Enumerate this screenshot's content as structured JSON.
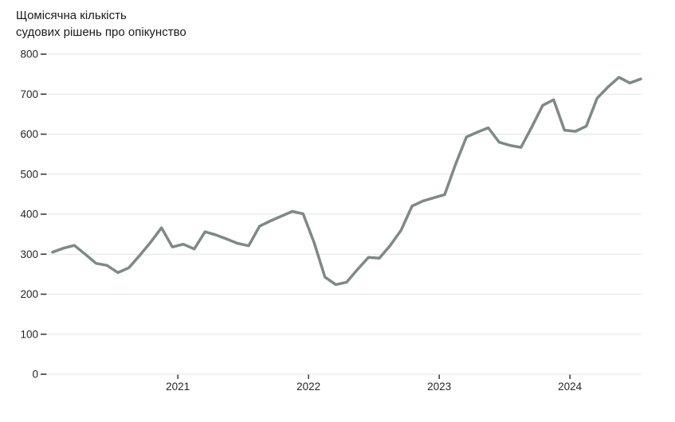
{
  "title": {
    "line1": "Щомісячна кількість",
    "line2": "судових рішень про опікунство"
  },
  "colors": {
    "line": "#7d8a87",
    "grid": "#e3e3e3",
    "tick": "#3a3a3a",
    "title_text": "#1a1a1a",
    "axis_text": "#262626",
    "background": "#ffffff"
  },
  "chart_data": {
    "type": "line",
    "title": "Щомісячна кількість судових рішень про опікунство",
    "xlabel": "",
    "ylabel": "",
    "ylim": [
      0,
      800
    ],
    "y_ticks": [
      0,
      100,
      200,
      300,
      400,
      500,
      600,
      700,
      800
    ],
    "x_year_ticks": [
      "2021",
      "2022",
      "2023",
      "2024"
    ],
    "grid": "horizontal",
    "legend": "none",
    "x": [
      "2020-01",
      "2020-02",
      "2020-03",
      "2020-04",
      "2020-05",
      "2020-06",
      "2020-07",
      "2020-08",
      "2020-09",
      "2020-10",
      "2020-11",
      "2020-12",
      "2021-01",
      "2021-02",
      "2021-03",
      "2021-04",
      "2021-05",
      "2021-06",
      "2021-07",
      "2021-08",
      "2021-09",
      "2021-10",
      "2021-11",
      "2021-12",
      "2022-01",
      "2022-02",
      "2022-03",
      "2022-04",
      "2022-05",
      "2022-06",
      "2022-07",
      "2022-08",
      "2022-09",
      "2022-10",
      "2022-11",
      "2022-12",
      "2023-01",
      "2023-02",
      "2023-03",
      "2023-04",
      "2023-05",
      "2023-06",
      "2023-07",
      "2023-08",
      "2023-09",
      "2023-10",
      "2023-11",
      "2023-12",
      "2024-01",
      "2024-02",
      "2024-03",
      "2024-04",
      "2024-05",
      "2024-06",
      "2024-07"
    ],
    "values": [
      305,
      315,
      322,
      300,
      277,
      272,
      254,
      266,
      297,
      330,
      366,
      318,
      325,
      313,
      356,
      348,
      338,
      327,
      321,
      370,
      383,
      395,
      407,
      401,
      330,
      243,
      224,
      230,
      262,
      292,
      290,
      322,
      360,
      420,
      433,
      441,
      449,
      525,
      593,
      605,
      616,
      580,
      572,
      567,
      618,
      672,
      686,
      610,
      607,
      620,
      690,
      718,
      742,
      728,
      738
    ]
  }
}
